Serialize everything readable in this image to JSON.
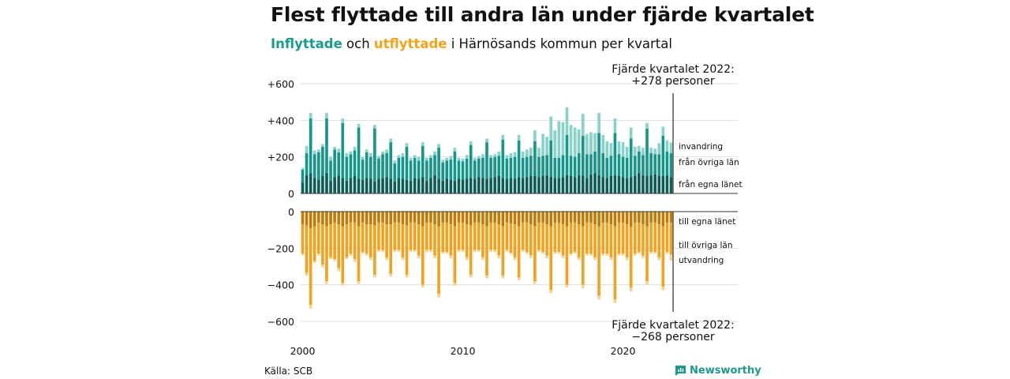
{
  "header": {
    "title": "Flest flyttade till andra län under fjärde kvartalet",
    "subtitle_in": "Inflyttade",
    "subtitle_mid": " och ",
    "subtitle_out": "utflyttade",
    "subtitle_rest": " i Härnösands kommun per kvartal"
  },
  "footer": {
    "source": "Källa: SCB",
    "brand": "Newsworthy"
  },
  "colors": {
    "in_egna": "#0b5e55",
    "in_ovriga": "#13978a",
    "in_invandring": "#87d3c9",
    "out_egna": "#c77a00",
    "out_ovriga": "#f5a11d",
    "out_utvandring": "#fbd189",
    "grid": "#dddddd",
    "axis": "#333333"
  },
  "chart_data": {
    "type": "bar",
    "subtype": "stacked-diverging",
    "x_start": "2000 Q1",
    "x_end": "2022 Q4",
    "x_ticks": [
      "2000",
      "2010",
      "2020"
    ],
    "upper": {
      "ylim": [
        0,
        600
      ],
      "yticks": [
        "0",
        "+200",
        "+400",
        "+600"
      ],
      "series": [
        {
          "name": "från egna länet",
          "values": [
            60,
            100,
            110,
            85,
            75,
            95,
            110,
            70,
            90,
            95,
            85,
            70,
            85,
            95,
            80,
            75,
            85,
            80,
            65,
            80,
            85,
            90,
            80,
            65,
            85,
            80,
            75,
            70,
            85,
            80,
            90,
            70,
            85,
            100,
            80,
            70,
            80,
            75,
            70,
            80,
            75,
            80,
            85,
            80,
            90,
            85,
            80,
            85,
            90,
            95,
            85,
            80,
            85,
            80,
            90,
            85,
            90,
            95,
            95,
            90,
            95,
            100,
            90,
            85,
            85,
            90,
            100,
            95,
            90,
            100,
            95,
            85,
            105,
            110,
            100,
            90,
            85,
            95,
            100,
            95,
            90,
            85,
            90,
            95,
            110,
            100,
            95,
            100,
            105,
            95,
            95,
            100,
            90
          ]
        },
        {
          "name": "från övriga län",
          "values": [
            70,
            120,
            300,
            130,
            150,
            160,
            300,
            110,
            150,
            130,
            300,
            130,
            130,
            140,
            280,
            110,
            140,
            120,
            290,
            110,
            130,
            130,
            200,
            100,
            110,
            120,
            180,
            110,
            110,
            100,
            170,
            110,
            110,
            110,
            170,
            100,
            100,
            110,
            160,
            100,
            100,
            110,
            180,
            100,
            100,
            110,
            200,
            110,
            110,
            110,
            210,
            110,
            110,
            120,
            200,
            110,
            110,
            110,
            190,
            110,
            110,
            110,
            200,
            110,
            110,
            120,
            220,
            110,
            110,
            120,
            220,
            130,
            110,
            120,
            230,
            130,
            110,
            110,
            230,
            120,
            110,
            110,
            210,
            110,
            120,
            110,
            260,
            120,
            110,
            120,
            220,
            130,
            130
          ]
        },
        {
          "name": "invandring",
          "values": [
            10,
            40,
            30,
            20,
            15,
            15,
            30,
            20,
            15,
            20,
            25,
            20,
            15,
            20,
            20,
            15,
            15,
            20,
            20,
            15,
            15,
            20,
            20,
            15,
            15,
            20,
            20,
            15,
            15,
            20,
            20,
            15,
            15,
            20,
            20,
            15,
            15,
            20,
            20,
            15,
            15,
            20,
            20,
            15,
            15,
            20,
            20,
            15,
            15,
            25,
            25,
            20,
            25,
            25,
            30,
            35,
            40,
            45,
            60,
            50,
            120,
            100,
            130,
            150,
            200,
            180,
            150,
            170,
            160,
            130,
            120,
            110,
            120,
            100,
            110,
            100,
            90,
            70,
            80,
            70,
            80,
            60,
            60,
            50,
            30,
            40,
            30,
            30,
            30,
            60,
            50,
            60,
            58
          ]
        }
      ],
      "callout": "Fjärde kvartalet 2022:\n+278 personer"
    },
    "lower": {
      "ylim": [
        -600,
        0
      ],
      "yticks": [
        "0",
        "−200",
        "−400",
        "−600"
      ],
      "series": [
        {
          "name": "till egna länet",
          "values": [
            -70,
            -75,
            -90,
            -80,
            -60,
            -70,
            -80,
            -70,
            -60,
            -70,
            -80,
            -70,
            -60,
            -60,
            -80,
            -60,
            -70,
            -70,
            -75,
            -60,
            -60,
            -70,
            -70,
            -60,
            -60,
            -70,
            -75,
            -60,
            -60,
            -70,
            -80,
            -60,
            -60,
            -70,
            -80,
            -60,
            -60,
            -70,
            -80,
            -60,
            -60,
            -70,
            -75,
            -60,
            -60,
            -70,
            -80,
            -60,
            -60,
            -70,
            -80,
            -60,
            -65,
            -70,
            -80,
            -60,
            -60,
            -70,
            -80,
            -60,
            -60,
            -70,
            -80,
            -60,
            -60,
            -70,
            -80,
            -60,
            -60,
            -70,
            -80,
            -60,
            -60,
            -70,
            -80,
            -60,
            -60,
            -70,
            -80,
            -60,
            -60,
            -70,
            -85,
            -60,
            -60,
            -70,
            -80,
            -60,
            -60,
            -70,
            -80,
            -60,
            -60
          ]
        },
        {
          "name": "till övriga län",
          "values": [
            -160,
            -260,
            -420,
            -190,
            -170,
            -220,
            -300,
            -180,
            -200,
            -240,
            -310,
            -180,
            -170,
            -200,
            -300,
            -160,
            -160,
            -180,
            -270,
            -150,
            -150,
            -180,
            -270,
            -150,
            -150,
            -180,
            -270,
            -150,
            -150,
            -170,
            -320,
            -150,
            -150,
            -170,
            -370,
            -160,
            -160,
            -170,
            -310,
            -150,
            -150,
            -180,
            -270,
            -150,
            -150,
            -180,
            -270,
            -150,
            -150,
            -170,
            -270,
            -150,
            -160,
            -180,
            -280,
            -150,
            -160,
            -170,
            -300,
            -150,
            -160,
            -170,
            -350,
            -160,
            -160,
            -170,
            -320,
            -170,
            -160,
            -180,
            -320,
            -170,
            -170,
            -180,
            -380,
            -170,
            -170,
            -180,
            -400,
            -170,
            -170,
            -180,
            -330,
            -170,
            -160,
            -170,
            -300,
            -160,
            -160,
            -180,
            -330,
            -160,
            -175
          ]
        },
        {
          "name": "utvandring",
          "values": [
            -10,
            -15,
            -20,
            -10,
            -10,
            -15,
            -15,
            -10,
            -10,
            -15,
            -15,
            -10,
            -10,
            -15,
            -15,
            -10,
            -10,
            -15,
            -15,
            -10,
            -10,
            -15,
            -15,
            -10,
            -10,
            -15,
            -15,
            -10,
            -10,
            -15,
            -15,
            -10,
            -10,
            -15,
            -20,
            -10,
            -10,
            -15,
            -15,
            -10,
            -10,
            -15,
            -15,
            -10,
            -10,
            -15,
            -15,
            -10,
            -10,
            -15,
            -15,
            -10,
            -10,
            -15,
            -15,
            -10,
            -10,
            -15,
            -15,
            -10,
            -10,
            -15,
            -15,
            -10,
            -10,
            -15,
            -15,
            -10,
            -10,
            -15,
            -20,
            -10,
            -10,
            -15,
            -20,
            -10,
            -10,
            -15,
            -20,
            -10,
            -10,
            -15,
            -20,
            -10,
            -10,
            -15,
            -20,
            -10,
            -10,
            -15,
            -20,
            -10,
            -33
          ]
        }
      ],
      "callout": "Fjärde kvartalet 2022:\n−268 personer"
    }
  }
}
